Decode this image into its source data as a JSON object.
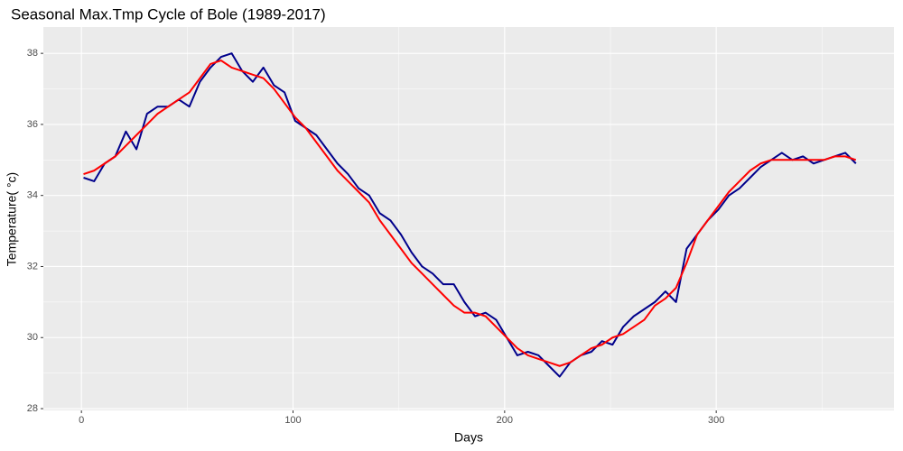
{
  "chart_data": {
    "type": "line",
    "title": "Seasonal Max.Tmp Cycle of Bole (1989-2017)",
    "x_label": "Days",
    "y_label": "Temperature( °c)",
    "x": [
      1,
      6,
      11,
      16,
      21,
      26,
      31,
      36,
      41,
      46,
      51,
      56,
      61,
      66,
      71,
      76,
      81,
      86,
      91,
      96,
      101,
      106,
      111,
      116,
      121,
      126,
      131,
      136,
      141,
      146,
      151,
      156,
      161,
      166,
      171,
      176,
      181,
      186,
      191,
      196,
      201,
      206,
      211,
      216,
      221,
      226,
      231,
      236,
      241,
      246,
      251,
      256,
      261,
      266,
      271,
      276,
      281,
      286,
      291,
      296,
      301,
      306,
      311,
      316,
      321,
      326,
      331,
      336,
      341,
      346,
      351,
      356,
      361,
      366
    ],
    "series": [
      {
        "color": "#00008b",
        "width": 2,
        "values": [
          34.5,
          34.4,
          34.9,
          35.1,
          35.8,
          35.3,
          36.3,
          36.5,
          36.5,
          36.7,
          36.5,
          37.2,
          37.6,
          37.9,
          38.0,
          37.5,
          37.2,
          37.6,
          37.1,
          36.9,
          36.1,
          35.9,
          35.7,
          35.3,
          34.9,
          34.6,
          34.2,
          34.0,
          33.5,
          33.3,
          32.9,
          32.4,
          32.0,
          31.8,
          31.5,
          31.5,
          31.0,
          30.6,
          30.7,
          30.5,
          30.0,
          29.5,
          29.6,
          29.5,
          29.2,
          28.9,
          29.3,
          29.5,
          29.6,
          29.9,
          29.8,
          30.3,
          30.6,
          30.8,
          31.0,
          31.3,
          31.0,
          32.5,
          32.9,
          33.3,
          33.6,
          34.0,
          34.2,
          34.5,
          34.8,
          35.0,
          35.2,
          35.0,
          35.1,
          34.9,
          35.0,
          35.1,
          35.2,
          34.9
        ]
      },
      {
        "color": "#ff0000",
        "width": 2,
        "values": [
          34.6,
          34.7,
          34.9,
          35.1,
          35.4,
          35.7,
          36.0,
          36.3,
          36.5,
          36.7,
          36.9,
          37.3,
          37.7,
          37.8,
          37.6,
          37.5,
          37.4,
          37.3,
          37.0,
          36.6,
          36.2,
          35.9,
          35.5,
          35.1,
          34.7,
          34.4,
          34.1,
          33.8,
          33.3,
          32.9,
          32.5,
          32.1,
          31.8,
          31.5,
          31.2,
          30.9,
          30.7,
          30.7,
          30.6,
          30.3,
          30.0,
          29.7,
          29.5,
          29.4,
          29.3,
          29.2,
          29.3,
          29.5,
          29.7,
          29.8,
          30.0,
          30.1,
          30.3,
          30.5,
          30.9,
          31.1,
          31.4,
          32.1,
          32.9,
          33.3,
          33.7,
          34.1,
          34.4,
          34.7,
          34.9,
          35.0,
          35.0,
          35.0,
          35.0,
          35.0,
          35.0,
          35.1,
          35.1,
          35.0
        ]
      }
    ],
    "xlim": [
      -18,
      384
    ],
    "ylim": [
      27.95,
      38.74
    ],
    "xticks": [
      0,
      100,
      200,
      300
    ],
    "yticks": [
      28,
      30,
      32,
      34,
      36,
      38
    ],
    "grid": true,
    "panel_color": "#ebebeb"
  }
}
